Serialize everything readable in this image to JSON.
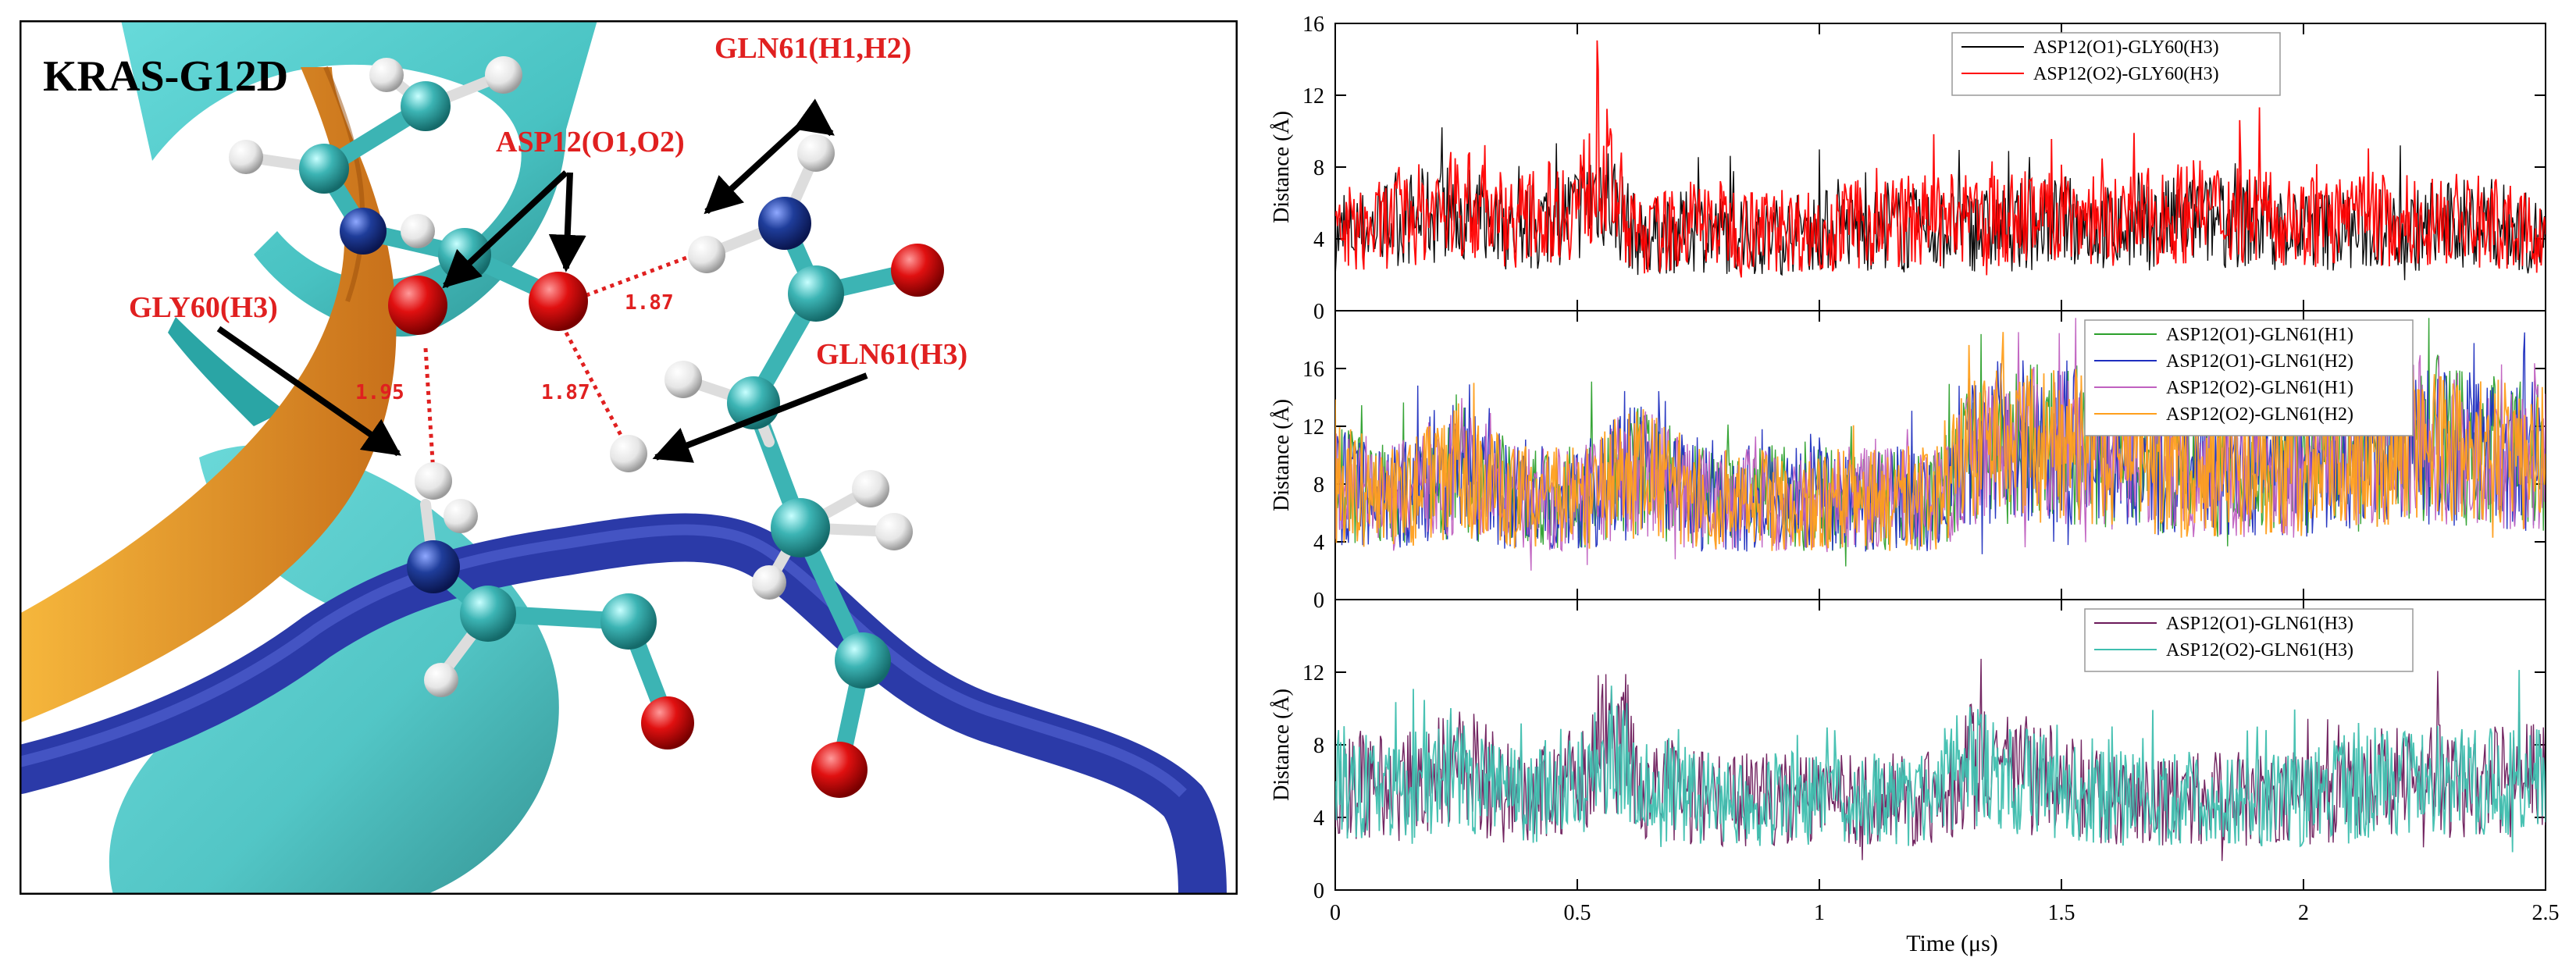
{
  "figure": {
    "left_panel": {
      "title": "KRAS-G12D",
      "labels": {
        "gln61_h1h2": "GLN61(H1,H2)",
        "asp12": "ASP12(O1,O2)",
        "gly60": "GLY60(H3)",
        "gln61_h3": "GLN61(H3)"
      },
      "distances": {
        "d1": "1.87",
        "d2": "1.87",
        "d3": "1.95"
      },
      "colors": {
        "label_red": "#e02020",
        "ribbon_cyan": "#3fbfbf",
        "ribbon_blue": "#2b3aa8",
        "ribbon_orange": "#e08a1e",
        "atom_red": "#e01010",
        "atom_white": "#f0f0f0",
        "atom_blue": "#1f3d9a",
        "atom_cyan": "#3cb4b4"
      }
    },
    "x_axis": {
      "label": "Time (μs)",
      "ticks": [
        "0",
        "0.5",
        "1",
        "1.5",
        "2",
        "2.5"
      ],
      "tick_values": [
        0,
        0.5,
        1,
        1.5,
        2,
        2.5
      ],
      "range": [
        0,
        2.5
      ]
    }
  },
  "chart_data": [
    {
      "type": "line",
      "id": "panel-a",
      "ylabel": "Distance (Å)",
      "ylim": [
        0,
        16
      ],
      "yticks": [
        0,
        4,
        8,
        12,
        16
      ],
      "ytick_labels": [
        "0",
        "4",
        "8",
        "12",
        "16"
      ],
      "xlim": [
        0,
        2.5
      ],
      "legend_position": "top-right",
      "series": [
        {
          "name": "ASP12(O1)-GLY60(H3)",
          "color": "#000000",
          "x": [
            0,
            0.125,
            0.25,
            0.375,
            0.5,
            0.55,
            0.625,
            0.75,
            0.875,
            1,
            1.125,
            1.25,
            1.375,
            1.5,
            1.625,
            1.75,
            1.875,
            2,
            2.125,
            2.25,
            2.375,
            2.5
          ],
          "values": [
            4,
            5,
            5.5,
            4.5,
            5.5,
            7,
            4,
            4.5,
            4,
            4.5,
            4.5,
            4.5,
            4.5,
            5,
            4.5,
            5,
            5,
            4.5,
            4.5,
            4.5,
            5,
            4
          ]
        },
        {
          "name": "ASP12(O2)-GLY60(H3)",
          "color": "#ff0000",
          "x": [
            0,
            0.125,
            0.25,
            0.375,
            0.5,
            0.55,
            0.625,
            0.75,
            0.875,
            1,
            1.125,
            1.25,
            1.375,
            1.5,
            1.625,
            1.75,
            1.875,
            2,
            2.125,
            2.25,
            2.375,
            2.5
          ],
          "values": [
            4,
            5,
            6,
            5,
            6,
            8,
            4,
            5,
            4.5,
            4.5,
            5,
            5,
            5,
            5.5,
            5,
            5.5,
            5.5,
            5,
            5,
            5,
            5,
            4
          ]
        }
      ]
    },
    {
      "type": "line",
      "id": "panel-b",
      "ylabel": "Distance (Å)",
      "ylim": [
        0,
        20
      ],
      "yticks": [
        0,
        4,
        8,
        12,
        16
      ],
      "ytick_labels": [
        "0",
        "4",
        "8",
        "12",
        "16"
      ],
      "xlim": [
        0,
        2.5
      ],
      "legend_position": "top-right",
      "series": [
        {
          "name": "ASP12(O1)-GLN61(H1)",
          "color": "#2ca02c",
          "x": [
            0,
            0.125,
            0.25,
            0.375,
            0.5,
            0.625,
            0.75,
            0.875,
            1,
            1.125,
            1.25,
            1.3,
            1.375,
            1.5,
            1.625,
            1.75,
            1.875,
            2,
            2.125,
            2.25,
            2.375,
            2.5
          ],
          "values": [
            8,
            7,
            9,
            7,
            7,
            9,
            7,
            7,
            7,
            7,
            7,
            10,
            11,
            11,
            10,
            9,
            9,
            9,
            10,
            11,
            10,
            10
          ]
        },
        {
          "name": "ASP12(O1)-GLN61(H2)",
          "color": "#1f2fbf",
          "x": [
            0,
            0.125,
            0.25,
            0.375,
            0.5,
            0.625,
            0.75,
            0.875,
            1,
            1.125,
            1.25,
            1.3,
            1.375,
            1.5,
            1.625,
            1.75,
            1.875,
            2,
            2.125,
            2.25,
            2.375,
            2.5
          ],
          "values": [
            8,
            7,
            9,
            7,
            7,
            9,
            7,
            7,
            7,
            7,
            7,
            10,
            11,
            11,
            10,
            9,
            9,
            9,
            10,
            11,
            10,
            10
          ]
        },
        {
          "name": "ASP12(O2)-GLN61(H1)",
          "color": "#c060c0",
          "x": [
            0,
            0.125,
            0.25,
            0.375,
            0.5,
            0.625,
            0.75,
            0.875,
            1,
            1.125,
            1.25,
            1.3,
            1.375,
            1.5,
            1.625,
            1.75,
            1.875,
            2,
            2.125,
            2.25,
            2.375,
            2.5
          ],
          "values": [
            8,
            7,
            9,
            7,
            7,
            9,
            7,
            7,
            7,
            7,
            7,
            10,
            11,
            11,
            10,
            9,
            9,
            9,
            10,
            11,
            10,
            10
          ]
        },
        {
          "name": "ASP12(O2)-GLN61(H2)",
          "color": "#ff9f1c",
          "x": [
            0,
            0.125,
            0.25,
            0.375,
            0.5,
            0.625,
            0.75,
            0.875,
            1,
            1.125,
            1.25,
            1.3,
            1.375,
            1.5,
            1.625,
            1.75,
            1.875,
            2,
            2.125,
            2.25,
            2.375,
            2.5
          ],
          "values": [
            8,
            7,
            9,
            7,
            7,
            9,
            7,
            7,
            7,
            7,
            7,
            10,
            11,
            11,
            10,
            9,
            9,
            9,
            10,
            11,
            10,
            10
          ]
        }
      ]
    },
    {
      "type": "line",
      "id": "panel-c",
      "ylabel": "Distance (Å)",
      "ylim": [
        0,
        16
      ],
      "yticks": [
        0,
        4,
        8,
        12
      ],
      "ytick_labels": [
        "0",
        "4",
        "8",
        "12"
      ],
      "xlim": [
        0,
        2.5
      ],
      "xlabel": "Time (μs)",
      "legend_position": "top-right",
      "series": [
        {
          "name": "ASP12(O1)-GLN61(H3)",
          "color": "#6b1a5a",
          "x": [
            0,
            0.125,
            0.25,
            0.375,
            0.5,
            0.6,
            0.625,
            0.75,
            0.875,
            1,
            1.125,
            1.25,
            1.3,
            1.375,
            1.5,
            1.625,
            1.75,
            1.875,
            2,
            2.125,
            2.25,
            2.375,
            2.5
          ],
          "values": [
            6,
            5.5,
            7,
            5,
            6,
            8,
            6,
            5,
            5,
            5,
            5,
            5,
            7,
            6,
            6,
            5,
            5,
            5,
            5,
            6,
            6,
            6,
            6
          ]
        },
        {
          "name": "ASP12(O2)-GLN61(H3)",
          "color": "#3fbfaf",
          "x": [
            0,
            0.125,
            0.25,
            0.375,
            0.5,
            0.6,
            0.625,
            0.75,
            0.875,
            1,
            1.125,
            1.25,
            1.3,
            1.375,
            1.5,
            1.625,
            1.75,
            1.875,
            2,
            2.125,
            2.25,
            2.375,
            2.5
          ],
          "values": [
            6,
            5.5,
            7,
            5,
            6,
            8,
            6,
            5,
            5,
            5,
            5,
            5,
            7,
            6,
            6,
            5,
            5,
            5,
            5,
            6,
            6,
            6,
            6
          ]
        }
      ]
    }
  ]
}
